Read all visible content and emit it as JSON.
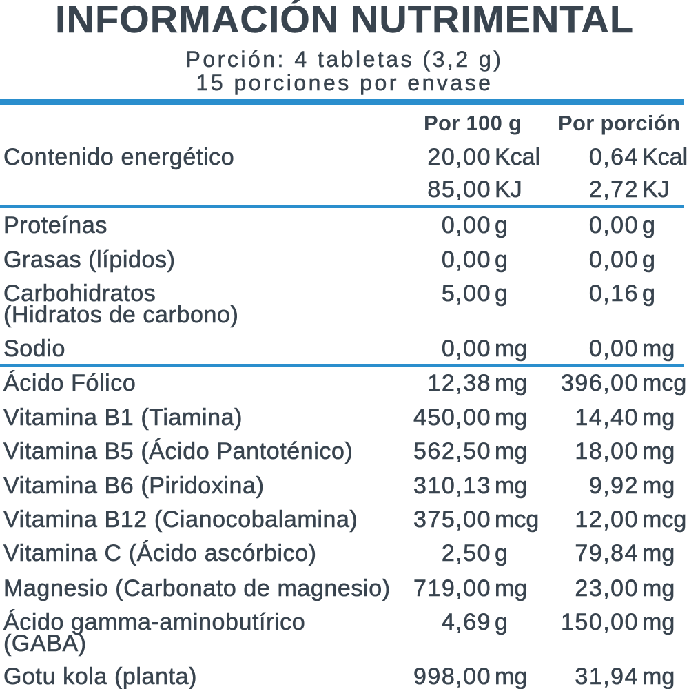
{
  "title": "INFORMACIÓN NUTRIMENTAL",
  "serving_size": "Porción: 4 tabletas (3,2 g)",
  "servings_per_container": "15 porciones por envase",
  "colors": {
    "text": "#39444f",
    "rule": "#2a8ecd"
  },
  "column_headers": {
    "per_100g": "Por 100 g",
    "per_serving": "Por porción"
  },
  "energy": {
    "label": "Contenido energético",
    "values": [
      {
        "per_100g": "20,00",
        "per_100g_unit": "Kcal",
        "per_serving": "0,64",
        "per_serving_unit": "Kcal"
      },
      {
        "per_100g": "85,00",
        "per_100g_unit": "KJ",
        "per_serving": "2,72",
        "per_serving_unit": "KJ"
      }
    ]
  },
  "macronutrients": [
    {
      "label": "Proteínas",
      "per_100g": "0,00",
      "per_100g_unit": "g",
      "per_serving": "0,00",
      "per_serving_unit": "g"
    },
    {
      "label": "Grasas (lípidos)",
      "per_100g": "0,00",
      "per_100g_unit": "g",
      "per_serving": "0,00",
      "per_serving_unit": "g"
    },
    {
      "label": "Carbohidratos",
      "label_line2": "(Hidratos de carbono)",
      "per_100g": "5,00",
      "per_100g_unit": "g",
      "per_serving": "0,16",
      "per_serving_unit": "g"
    },
    {
      "label": "Sodio",
      "per_100g": "0,00",
      "per_100g_unit": "mg",
      "per_serving": "0,00",
      "per_serving_unit": "mg"
    }
  ],
  "micronutrients": [
    {
      "label": "Ácido Fólico",
      "per_100g": "12,38",
      "per_100g_unit": "mg",
      "per_serving": "396,00",
      "per_serving_unit": "mcg"
    },
    {
      "label": "Vitamina B1 (Tiamina)",
      "per_100g": "450,00",
      "per_100g_unit": "mg",
      "per_serving": "14,40",
      "per_serving_unit": "mg"
    },
    {
      "label": "Vitamina B5 (Ácido Pantoténico)",
      "per_100g": "562,50",
      "per_100g_unit": "mg",
      "per_serving": "18,00",
      "per_serving_unit": "mg"
    },
    {
      "label": "Vitamina B6 (Piridoxina)",
      "per_100g": "310,13",
      "per_100g_unit": "mg",
      "per_serving": "9,92",
      "per_serving_unit": "mg"
    },
    {
      "label": "Vitamina B12 (Cianocobalamina)",
      "per_100g": "375,00",
      "per_100g_unit": "mcg",
      "per_serving": "12,00",
      "per_serving_unit": "mcg"
    },
    {
      "label": "Vitamina C (Ácido ascórbico)",
      "per_100g": "2,50",
      "per_100g_unit": "g",
      "per_serving": "79,84",
      "per_serving_unit": "mg"
    },
    {
      "label": "Magnesio (Carbonato de magnesio)",
      "per_100g": "719,00",
      "per_100g_unit": "mg",
      "per_serving": "23,00",
      "per_serving_unit": "mg"
    },
    {
      "label": "Ácido gamma-aminobutírico",
      "label_line2": "(GABA)",
      "per_100g": "4,69",
      "per_100g_unit": "g",
      "per_serving": "150,00",
      "per_serving_unit": "mg"
    },
    {
      "label": "Gotu kola (planta)",
      "per_100g": "998,00",
      "per_100g_unit": "mg",
      "per_serving": "31,94",
      "per_serving_unit": "mg"
    }
  ]
}
